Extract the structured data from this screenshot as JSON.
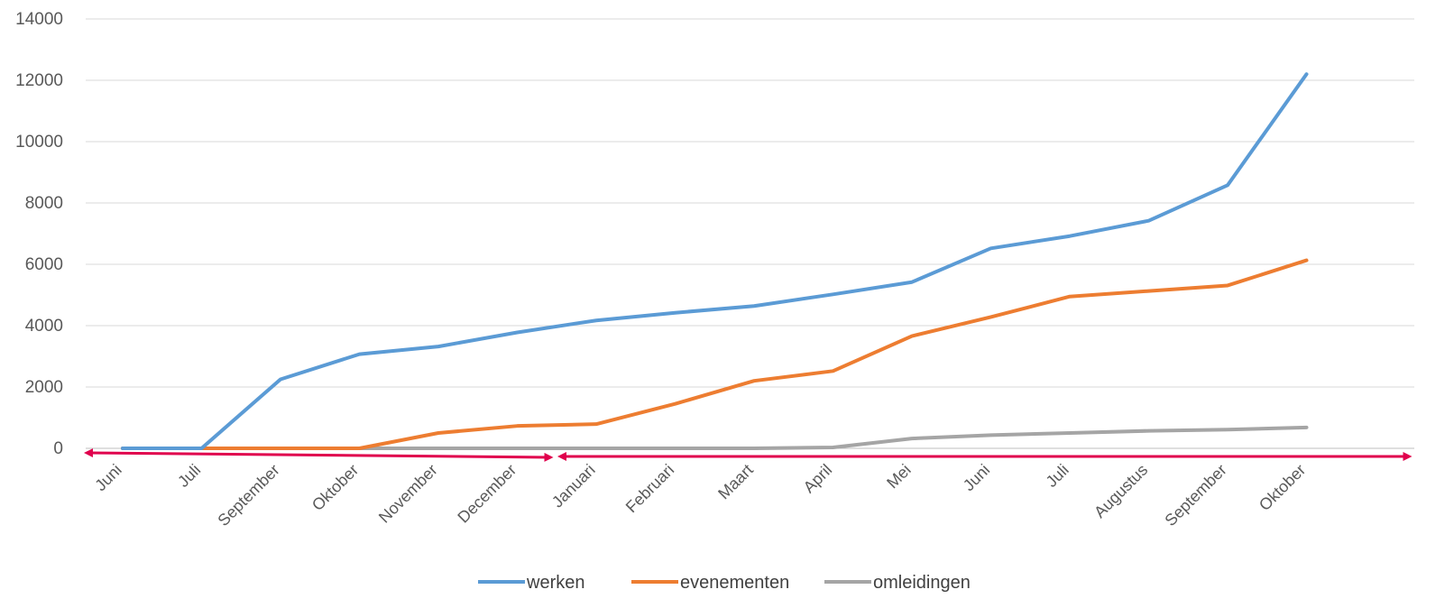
{
  "chart_data": {
    "type": "line",
    "categories": [
      "Juni",
      "Juli",
      "September",
      "Oktober",
      "November",
      "December",
      "Januari",
      "Februari",
      "Maart",
      "April",
      "Mei",
      "Juni",
      "Juli",
      "Augustus",
      "September",
      "Oktober"
    ],
    "ylim": [
      0,
      14000
    ],
    "yticks": [
      0,
      2000,
      4000,
      6000,
      8000,
      10000,
      12000,
      14000
    ],
    "grid": true,
    "legend_position": "bottom",
    "series": [
      {
        "name": "werken",
        "color": "#5B9BD5",
        "values": [
          0,
          0,
          2250,
          3070,
          3320,
          3780,
          4170,
          4420,
          4640,
          5020,
          5420,
          6520,
          6920,
          7420,
          8580,
          12200
        ]
      },
      {
        "name": "evenementen",
        "color": "#ED7D31",
        "values": [
          0,
          0,
          0,
          0,
          500,
          730,
          790,
          1450,
          2200,
          2520,
          3660,
          4280,
          4950,
          5130,
          5310,
          6130
        ]
      },
      {
        "name": "omleidingen",
        "color": "#A5A5A5",
        "values": [
          0,
          0,
          0,
          0,
          0,
          0,
          0,
          0,
          0,
          30,
          320,
          430,
          500,
          570,
          610,
          680
        ]
      }
    ],
    "annotations": [
      {
        "type": "double-arrow",
        "color": "#E0004D",
        "from_category": "Juni",
        "to_category": "December"
      },
      {
        "type": "double-arrow",
        "color": "#E0004D",
        "from_category": "Januari",
        "to_category": "Oktober"
      }
    ]
  }
}
